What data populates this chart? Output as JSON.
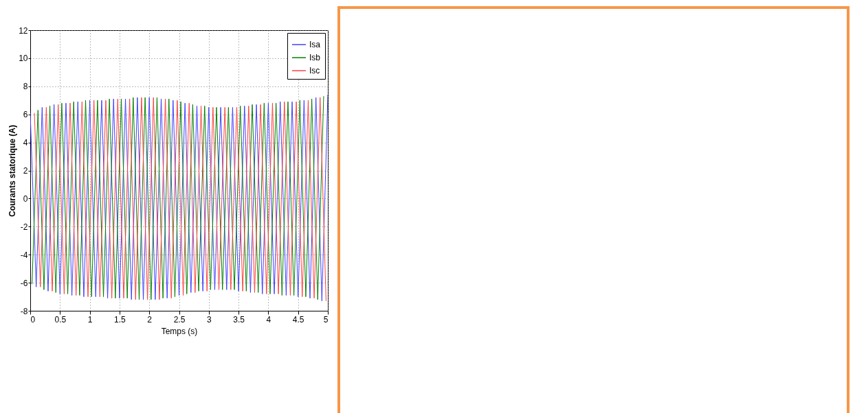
{
  "chart_data": {
    "type": "line",
    "xlabel": "Temps (s)",
    "ylabel": "Courants statorique (A)",
    "xlim": [
      0,
      5
    ],
    "xticks": [
      0,
      0.5,
      1,
      1.5,
      2,
      2.5,
      3,
      3.5,
      4,
      4.5,
      5
    ],
    "ylim": [
      -8,
      12
    ],
    "yticks": [
      -8,
      -6,
      -4,
      -2,
      0,
      2,
      4,
      6,
      8,
      10,
      12
    ],
    "grid": true,
    "legend": "top right",
    "series": [
      {
        "name": "Isa",
        "color": "#4040ff",
        "x": [
          0,
          0.1,
          0.2,
          0.3,
          0.4,
          0.5,
          0.6,
          0.7,
          0.8,
          0.9,
          1,
          1.1,
          1.2,
          1.3,
          1.4,
          1.5,
          1.6,
          1.7,
          1.8,
          1.9,
          2,
          2.1,
          2.2,
          2.3,
          2.4,
          2.5,
          2.6,
          2.7,
          2.8,
          2.9,
          3,
          3.1,
          3.2,
          3.3,
          3.4,
          3.5,
          3.6,
          3.7,
          3.8,
          3.9,
          4,
          4.1,
          4.2,
          4.3,
          4.4,
          4.5,
          4.6,
          4.7,
          4.8,
          4.9,
          5
        ],
        "values": [
          6.1,
          -6.3,
          6.5,
          -6.6,
          6.7,
          -6.8,
          6.8,
          -6.9,
          6.9,
          -7.0,
          7.0,
          -7.0,
          7.0,
          -7.1,
          7.1,
          -7.1,
          7.1,
          -7.2,
          7.2,
          -7.2,
          7.2,
          -7.2,
          7.1,
          -7.1,
          7.0,
          -6.9,
          6.8,
          -6.7,
          6.6,
          -6.6,
          6.5,
          -6.5,
          6.5,
          -6.5,
          6.5,
          -6.6,
          6.6,
          -6.7,
          6.7,
          -6.8,
          6.8,
          -6.8,
          6.9,
          -6.9,
          6.9,
          -7.0,
          7.0,
          -7.1,
          7.2,
          -7.3,
          7.4
        ]
      },
      {
        "name": "Isb",
        "color": "#008000",
        "x": [
          0.03,
          0.13,
          0.23,
          0.33,
          0.43,
          0.53,
          0.63,
          0.73,
          0.83,
          0.93,
          1.03,
          1.13,
          1.23,
          1.33,
          1.43,
          1.53,
          1.63,
          1.73,
          1.83,
          1.93,
          2.03,
          2.13,
          2.23,
          2.33,
          2.43,
          2.53,
          2.63,
          2.73,
          2.83,
          2.93,
          3.03,
          3.13,
          3.23,
          3.33,
          3.43,
          3.53,
          3.63,
          3.73,
          3.83,
          3.93,
          4.03,
          4.13,
          4.23,
          4.33,
          4.43,
          4.53,
          4.63,
          4.73,
          4.83,
          4.93
        ],
        "values": [
          -6.1,
          6.3,
          -6.5,
          6.6,
          -6.7,
          6.8,
          -6.8,
          6.9,
          -6.9,
          7.0,
          -7.0,
          7.0,
          -7.0,
          7.1,
          -7.1,
          7.1,
          -7.1,
          7.2,
          -7.2,
          7.2,
          -7.2,
          7.2,
          -7.1,
          7.1,
          -7.0,
          6.9,
          -6.8,
          6.7,
          -6.6,
          6.6,
          -6.5,
          6.5,
          -6.5,
          6.5,
          -6.5,
          6.6,
          -6.6,
          6.7,
          -6.7,
          6.8,
          -6.8,
          6.8,
          -6.9,
          6.9,
          -6.9,
          7.0,
          -7.0,
          7.1,
          -7.2,
          7.3
        ]
      },
      {
        "name": "Isc",
        "color": "#ff4040",
        "x": [
          0.07,
          0.17,
          0.27,
          0.37,
          0.47,
          0.57,
          0.67,
          0.77,
          0.87,
          0.97,
          1.07,
          1.17,
          1.27,
          1.37,
          1.47,
          1.57,
          1.67,
          1.77,
          1.87,
          1.97,
          2.07,
          2.17,
          2.27,
          2.37,
          2.47,
          2.57,
          2.67,
          2.77,
          2.87,
          2.97,
          3.07,
          3.17,
          3.27,
          3.37,
          3.47,
          3.57,
          3.67,
          3.77,
          3.87,
          3.97,
          4.07,
          4.17,
          4.27,
          4.37,
          4.47,
          4.57,
          4.67,
          4.77,
          4.87,
          4.97
        ],
        "values": [
          6.1,
          -6.3,
          6.5,
          -6.6,
          6.7,
          -6.8,
          6.8,
          -6.9,
          6.9,
          -7.0,
          7.0,
          -7.0,
          7.0,
          -7.1,
          7.1,
          -7.1,
          7.1,
          -7.2,
          7.2,
          -7.2,
          7.2,
          -7.2,
          7.1,
          -7.1,
          7.0,
          -6.9,
          6.8,
          -6.7,
          6.6,
          -6.6,
          6.5,
          -6.5,
          6.5,
          -6.5,
          6.5,
          -6.6,
          6.6,
          -6.7,
          6.7,
          -6.8,
          6.8,
          -6.8,
          6.9,
          -6.9,
          6.9,
          -7.0,
          7.0,
          -7.1,
          7.2,
          -7.3
        ]
      }
    ]
  }
}
